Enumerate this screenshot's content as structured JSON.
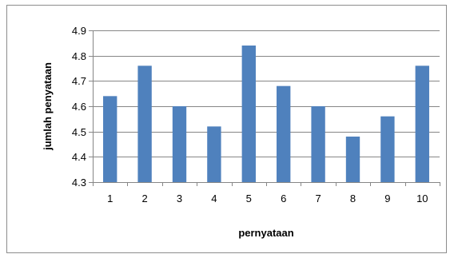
{
  "chart_data": {
    "type": "bar",
    "categories": [
      "1",
      "2",
      "3",
      "4",
      "5",
      "6",
      "7",
      "8",
      "9",
      "10"
    ],
    "values": [
      4.64,
      4.76,
      4.6,
      4.52,
      4.84,
      4.68,
      4.6,
      4.48,
      4.56,
      4.76
    ],
    "title": "",
    "xlabel": "pernyataan",
    "ylabel": "jumlah penyataan",
    "ylim": [
      4.3,
      4.9
    ],
    "yticks": [
      "4.3",
      "4.4",
      "4.5",
      "4.6",
      "4.7",
      "4.8",
      "4.9"
    ],
    "grid": true,
    "legend": "none",
    "colors": {
      "bar": "#4f81bd",
      "grid": "#868686",
      "axis": "#868686",
      "frame": "#8c8c8c"
    }
  }
}
